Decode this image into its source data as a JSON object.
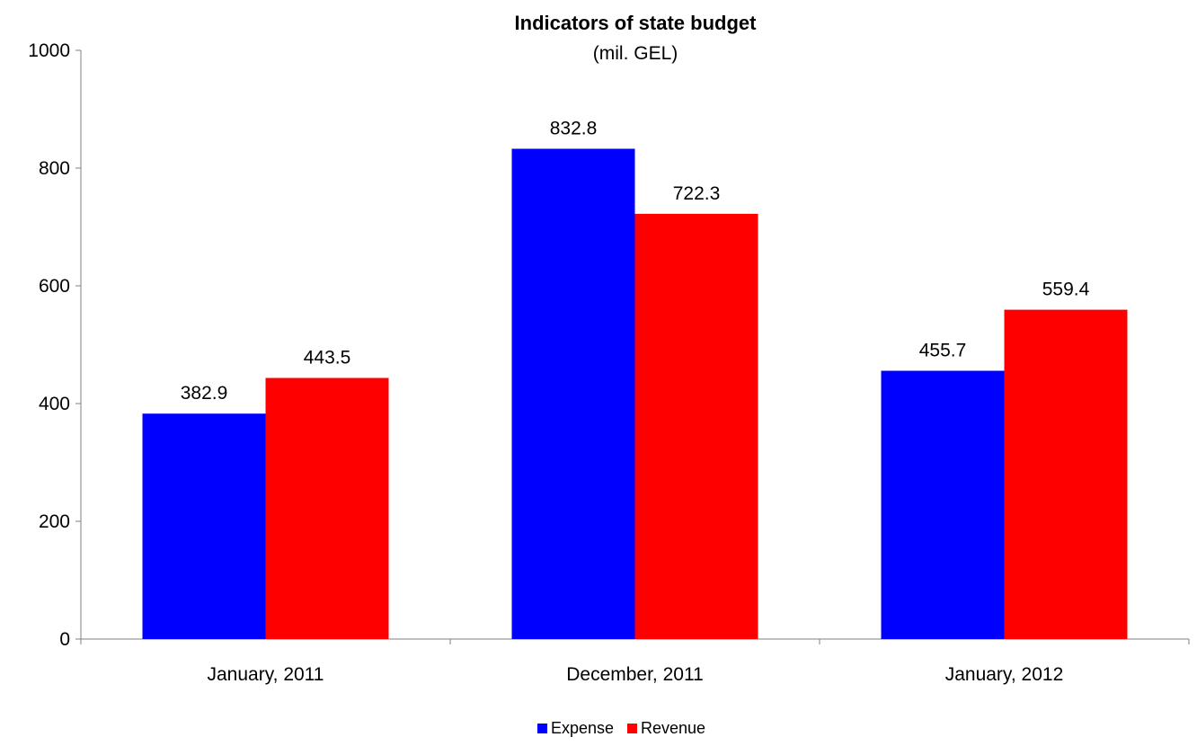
{
  "chart_data": {
    "type": "bar",
    "title": "Indicators of state budget",
    "subtitle": "(mil. GEL)",
    "categories": [
      "January, 2011",
      "December, 2011",
      "January, 2012"
    ],
    "series": [
      {
        "name": "Expense",
        "values": [
          382.9,
          832.8,
          455.7
        ],
        "color": "#0000FF"
      },
      {
        "name": "Revenue",
        "values": [
          443.5,
          722.3,
          559.4
        ],
        "color": "#FF0000"
      }
    ],
    "data_labels": [
      [
        "382.9",
        "832.8",
        "455.7"
      ],
      [
        "443.5",
        "722.3",
        "559.4"
      ]
    ],
    "ylim": [
      0,
      1000
    ],
    "yticks": [
      0,
      200,
      400,
      600,
      800,
      1000
    ],
    "grid": false,
    "legend_position": "bottom"
  }
}
